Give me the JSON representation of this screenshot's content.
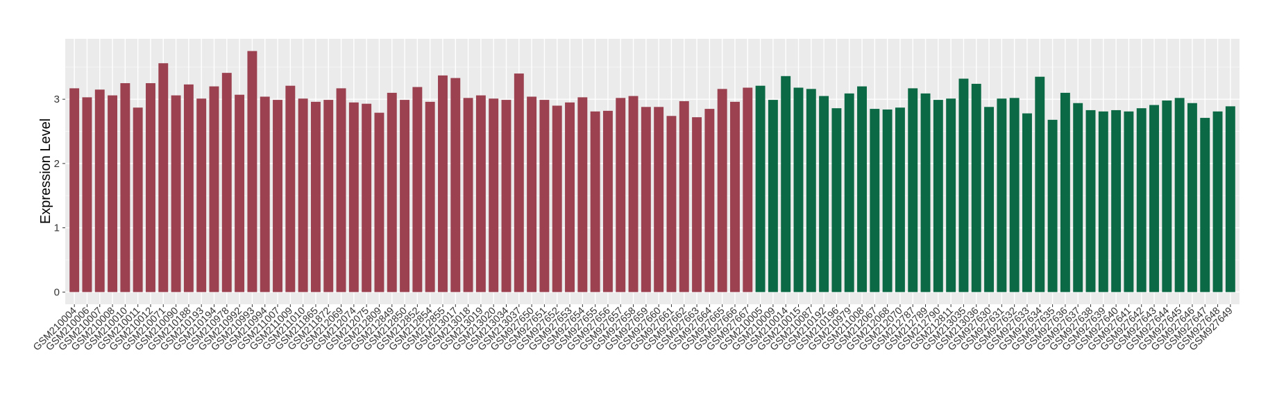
{
  "chart_data": {
    "type": "bar",
    "y_label": "Expression Level",
    "categories": [
      "GSM210004",
      "GSM210006",
      "GSM210007",
      "GSM210008",
      "GSM210010",
      "GSM210011",
      "GSM210012",
      "GSM210071",
      "GSM210090",
      "GSM210188",
      "GSM210193",
      "GSM210194",
      "GSM210978",
      "GSM210992",
      "GSM210993",
      "GSM210994",
      "GSM211007",
      "GSM211009",
      "GSM211010",
      "GSM211865",
      "GSM211872",
      "GSM212069",
      "GSM212074",
      "GSM212075",
      "GSM212809",
      "GSM212849",
      "GSM212850",
      "GSM212852",
      "GSM212854",
      "GSM212855",
      "GSM213017",
      "GSM213018",
      "GSM213019",
      "GSM213020",
      "GSM213034",
      "GSM213037",
      "GSM927650",
      "GSM927651",
      "GSM927652",
      "GSM927653",
      "GSM927654",
      "GSM927655",
      "GSM927656",
      "GSM927657",
      "GSM927658",
      "GSM927659",
      "GSM927660",
      "GSM927661",
      "GSM927662",
      "GSM927663",
      "GSM927664",
      "GSM927665",
      "GSM927666",
      "GSM927667",
      "GSM210005",
      "GSM210009",
      "GSM210014",
      "GSM210015",
      "GSM210087",
      "GSM210192",
      "GSM210196",
      "GSM210979",
      "GSM211008",
      "GSM212067",
      "GSM212068",
      "GSM212070",
      "GSM212787",
      "GSM212789",
      "GSM212790",
      "GSM212811",
      "GSM213035",
      "GSM213036",
      "GSM927630",
      "GSM927631",
      "GSM927632",
      "GSM927633",
      "GSM927634",
      "GSM927635",
      "GSM927636",
      "GSM927637",
      "GSM927638",
      "GSM927639",
      "GSM927640",
      "GSM927641",
      "GSM927642",
      "GSM927643",
      "GSM927644",
      "GSM927645",
      "GSM927646",
      "GSM927647",
      "GSM927648",
      "GSM927649"
    ],
    "values": [
      3.17,
      3.03,
      3.15,
      3.06,
      3.25,
      2.87,
      3.25,
      3.56,
      3.06,
      3.23,
      3.01,
      3.2,
      3.41,
      3.07,
      3.75,
      3.04,
      2.99,
      3.21,
      3.01,
      2.96,
      2.99,
      3.17,
      2.95,
      2.93,
      2.79,
      3.1,
      2.99,
      3.19,
      2.96,
      3.37,
      3.33,
      3.02,
      3.06,
      3.01,
      2.99,
      3.4,
      3.04,
      2.99,
      2.9,
      2.95,
      3.03,
      2.81,
      2.82,
      3.02,
      3.05,
      2.88,
      2.88,
      2.74,
      2.97,
      2.72,
      2.85,
      3.16,
      2.96,
      3.18,
      3.21,
      2.99,
      3.36,
      3.18,
      3.16,
      3.05,
      2.86,
      3.09,
      3.2,
      2.85,
      2.84,
      2.87,
      3.17,
      3.09,
      2.99,
      3.01,
      3.32,
      3.24,
      2.88,
      3.01,
      3.02,
      2.78,
      3.35,
      2.68,
      3.1,
      2.94,
      2.83,
      2.81,
      2.83,
      2.81,
      2.86,
      2.91,
      2.98,
      3.02,
      2.94,
      2.71,
      2.81,
      2.89
    ],
    "colors": [
      "#9b4150",
      "#9b4150",
      "#9b4150",
      "#9b4150",
      "#9b4150",
      "#9b4150",
      "#9b4150",
      "#9b4150",
      "#9b4150",
      "#9b4150",
      "#9b4150",
      "#9b4150",
      "#9b4150",
      "#9b4150",
      "#9b4150",
      "#9b4150",
      "#9b4150",
      "#9b4150",
      "#9b4150",
      "#9b4150",
      "#9b4150",
      "#9b4150",
      "#9b4150",
      "#9b4150",
      "#9b4150",
      "#9b4150",
      "#9b4150",
      "#9b4150",
      "#9b4150",
      "#9b4150",
      "#9b4150",
      "#9b4150",
      "#9b4150",
      "#9b4150",
      "#9b4150",
      "#9b4150",
      "#9b4150",
      "#9b4150",
      "#9b4150",
      "#9b4150",
      "#9b4150",
      "#9b4150",
      "#9b4150",
      "#9b4150",
      "#9b4150",
      "#9b4150",
      "#9b4150",
      "#9b4150",
      "#9b4150",
      "#9b4150",
      "#9b4150",
      "#9b4150",
      "#9b4150",
      "#9b4150",
      "#0b6a45",
      "#0b6a45",
      "#0b6a45",
      "#0b6a45",
      "#0b6a45",
      "#0b6a45",
      "#0b6a45",
      "#0b6a45",
      "#0b6a45",
      "#0b6a45",
      "#0b6a45",
      "#0b6a45",
      "#0b6a45",
      "#0b6a45",
      "#0b6a45",
      "#0b6a45",
      "#0b6a45",
      "#0b6a45",
      "#0b6a45",
      "#0b6a45",
      "#0b6a45",
      "#0b6a45",
      "#0b6a45",
      "#0b6a45",
      "#0b6a45",
      "#0b6a45",
      "#0b6a45",
      "#0b6a45",
      "#0b6a45",
      "#0b6a45",
      "#0b6a45",
      "#0b6a45",
      "#0b6a45",
      "#0b6a45",
      "#0b6a45",
      "#0b6a45",
      "#0b6a45",
      "#0b6a45"
    ],
    "ylim": [
      -0.19,
      3.94
    ],
    "yticks": [
      0,
      1,
      2,
      3
    ],
    "grid": true
  }
}
